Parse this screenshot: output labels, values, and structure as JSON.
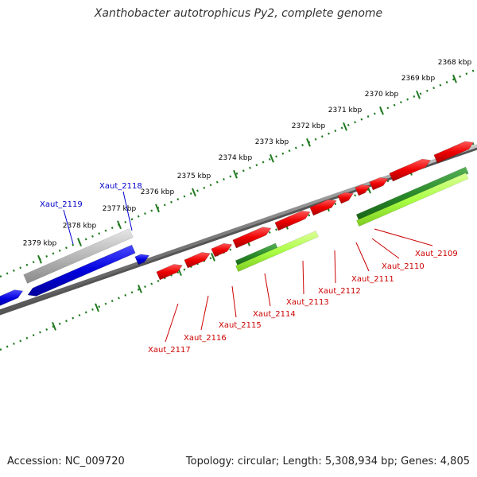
{
  "title": "Xanthobacter autotrophicus Py2, complete genome",
  "footer": {
    "accession": "Accession: NC_009720",
    "summary": "Topology: circular; Length: 5,308,934 bp; Genes: 4,805"
  },
  "colors": {
    "forward_cds": "#ee0000",
    "reverse_cds": "#0000dd",
    "forward_gene": "#2a8a2a",
    "forward_rna": "#aaff44",
    "reverse_gene": "#b0b0b0",
    "backbone": "#808080",
    "tick": "#1f7a1f",
    "forward_label": "#cc0000",
    "reverse_label": "#0000cc",
    "kbp_label": "#000000"
  },
  "scale": {
    "unit": "kbp",
    "labels": [
      "2368 kbp",
      "2369 kbp",
      "2370 kbp",
      "2371 kbp",
      "2372 kbp",
      "2373 kbp",
      "2374 kbp",
      "2375 kbp",
      "2376 kbp",
      "2377 kbp",
      "2378 kbp",
      "2379 kbp"
    ]
  },
  "features": {
    "forward": [
      {
        "id": "Xaut_2109",
        "name": "Xaut_2109",
        "label": "Xaut_2109"
      },
      {
        "id": "Xaut_2110",
        "name": "Xaut_2110",
        "label": "Xaut_2110"
      },
      {
        "id": "Xaut_2111",
        "name": "Xaut_2111",
        "label": "Xaut_2111"
      },
      {
        "id": "Xaut_2112",
        "name": "Xaut_2112",
        "label": "Xaut_2112"
      },
      {
        "id": "Xaut_2113",
        "name": "Xaut_2113",
        "label": "Xaut_2113"
      },
      {
        "id": "Xaut_2114",
        "name": "Xaut_2114",
        "label": "Xaut_2114"
      },
      {
        "id": "Xaut_2115",
        "name": "Xaut_2115",
        "label": "Xaut_2115"
      },
      {
        "id": "Xaut_2116",
        "name": "Xaut_2116",
        "label": "Xaut_2116"
      },
      {
        "id": "Xaut_2117",
        "name": "Xaut_2117",
        "label": "Xaut_2117"
      }
    ],
    "reverse": [
      {
        "id": "Xaut_2118",
        "name": "Xaut_2118",
        "label": "Xaut_2118"
      },
      {
        "id": "Xaut_2119",
        "name": "Xaut_2119",
        "label": "Xaut_2119"
      }
    ]
  }
}
